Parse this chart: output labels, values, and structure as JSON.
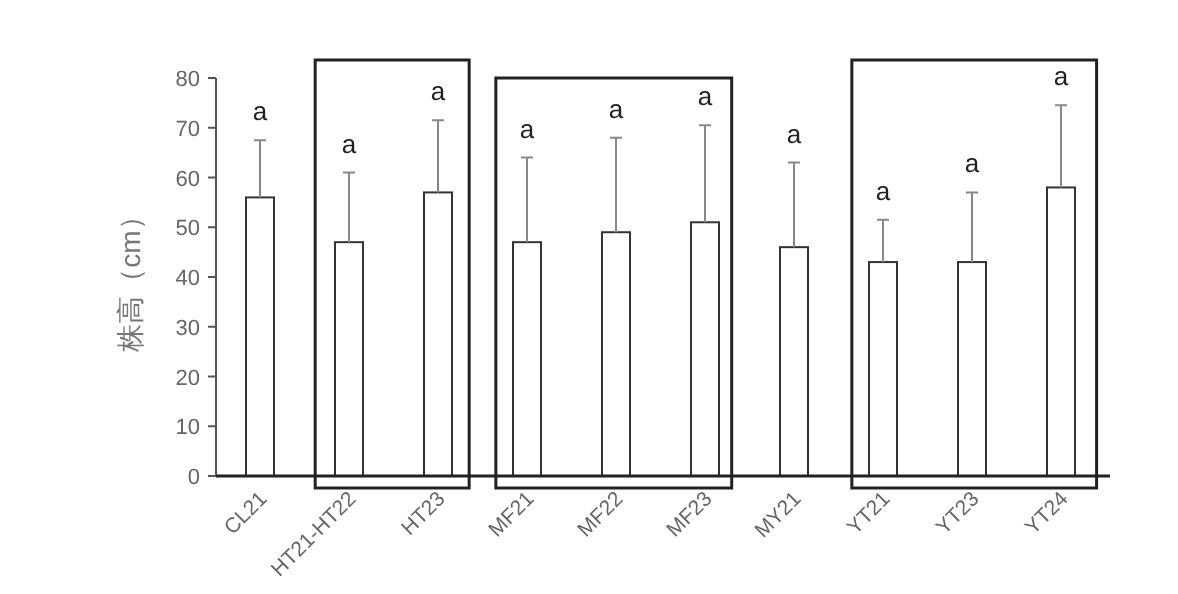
{
  "chart_data": {
    "type": "bar",
    "ylabel": "株高（cm）",
    "categories": [
      "CL21",
      "HT21-HT22",
      "HT23",
      "MF21",
      "MF22",
      "MF23",
      "MY21",
      "YT21",
      "YT23",
      "YT24"
    ],
    "values": [
      56,
      47,
      57,
      47,
      49,
      51,
      46,
      43,
      43,
      58
    ],
    "errors": [
      [
        56,
        67.5
      ],
      [
        47,
        61
      ],
      [
        57,
        71.5
      ],
      [
        47,
        64
      ],
      [
        49,
        68
      ],
      [
        51,
        70.5
      ],
      [
        46,
        63
      ],
      [
        43,
        51.5
      ],
      [
        43,
        57
      ],
      [
        58,
        74.5
      ]
    ],
    "color": "#ffffff",
    "ylim": [
      0,
      80
    ],
    "yticks": [
      0,
      10,
      20,
      30,
      40,
      50,
      60,
      70,
      80
    ],
    "annotations": [
      {
        "text": "a",
        "x": "CL21",
        "y": 67.5
      },
      {
        "text": "a",
        "x": "HT21-HT22",
        "y": 61
      },
      {
        "text": "a",
        "x": "HT23",
        "y": 71.5
      },
      {
        "text": "a",
        "x": "MF21",
        "y": 64
      },
      {
        "text": "a",
        "x": "MF22",
        "y": 68
      },
      {
        "text": "a",
        "x": "MF23",
        "y": 70.5
      },
      {
        "text": "a",
        "x": "MY21",
        "y": 63
      },
      {
        "text": "a",
        "x": "YT21",
        "y": 51.5
      },
      {
        "text": "a",
        "x": "YT23",
        "y": 57
      },
      {
        "text": "a",
        "x": "YT24",
        "y": 74.5
      }
    ]
  }
}
